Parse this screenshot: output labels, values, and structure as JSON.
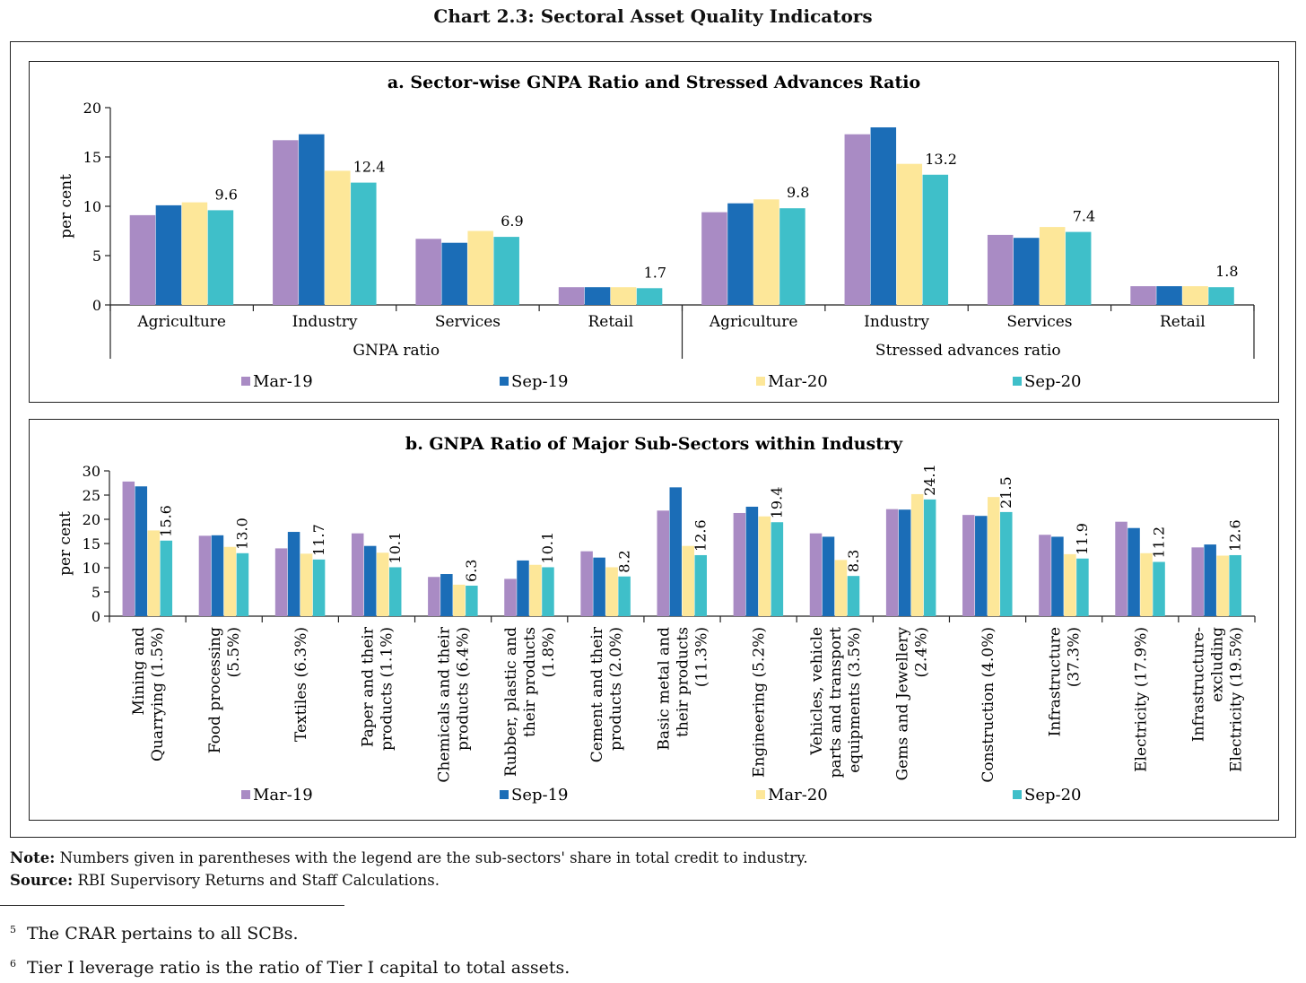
{
  "title": "Chart 2.3: Sectoral Asset Quality Indicators",
  "legend": [
    {
      "name": "Mar-19",
      "color": "#a98bc4"
    },
    {
      "name": "Sep-19",
      "color": "#1b6db7"
    },
    {
      "name": "Mar-20",
      "color": "#fde799"
    },
    {
      "name": "Sep-20",
      "color": "#3fbfc9"
    }
  ],
  "note_label": "Note:",
  "note_text": "Numbers given in parentheses with the legend are the sub-sectors' share in total credit to industry.",
  "source_label": "Source:",
  "source_text": "RBI Supervisory Returns and Staff Calculations.",
  "footnotes": [
    {
      "num": "5",
      "text": "The CRAR pertains to all SCBs."
    },
    {
      "num": "6",
      "text": "Tier I leverage ratio is the ratio of Tier I capital to total assets."
    }
  ],
  "chart_data": [
    {
      "type": "bar",
      "title": "a. Sector-wise GNPA Ratio and Stressed Advances Ratio",
      "ylabel": "per cent",
      "ylim": [
        0,
        20
      ],
      "yticks": [
        0,
        5,
        10,
        15,
        20
      ],
      "groups": [
        {
          "label": "GNPA ratio",
          "categories": [
            "Agriculture",
            "Industry",
            "Services",
            "Retail"
          ]
        },
        {
          "label": "Stressed advances ratio",
          "categories": [
            "Agriculture",
            "Industry",
            "Services",
            "Retail"
          ]
        }
      ],
      "categories": [
        "Agriculture",
        "Industry",
        "Services",
        "Retail",
        "Agriculture",
        "Industry",
        "Services",
        "Retail"
      ],
      "series": [
        {
          "name": "Mar-19",
          "values": [
            9.1,
            16.7,
            6.7,
            1.8,
            9.4,
            17.3,
            7.1,
            1.9
          ]
        },
        {
          "name": "Sep-19",
          "values": [
            10.1,
            17.3,
            6.3,
            1.8,
            10.3,
            18.0,
            6.8,
            1.9
          ]
        },
        {
          "name": "Mar-20",
          "values": [
            10.4,
            13.6,
            7.5,
            1.8,
            10.7,
            14.3,
            7.9,
            1.9
          ]
        },
        {
          "name": "Sep-20",
          "values": [
            9.6,
            12.4,
            6.9,
            1.7,
            9.8,
            13.2,
            7.4,
            1.8
          ]
        }
      ],
      "data_labels": [
        "9.6",
        "12.4",
        "6.9",
        "1.7",
        "9.8",
        "13.2",
        "7.4",
        "1.8"
      ],
      "legend_position": "bottom"
    },
    {
      "type": "bar",
      "title": "b. GNPA Ratio of Major Sub-Sectors within Industry",
      "ylabel": "per cent",
      "ylim": [
        0,
        30
      ],
      "yticks": [
        0,
        5,
        10,
        15,
        20,
        25,
        30
      ],
      "categories": [
        [
          "Mining and",
          "Quarrying (1.5%)"
        ],
        [
          "Food processing",
          "(5.5%)"
        ],
        [
          "Textiles (6.3%)"
        ],
        [
          "Paper and their",
          "products (1.1%)"
        ],
        [
          "Chemicals and their",
          "products (6.4%)"
        ],
        [
          "Rubber, plastic and",
          "their products",
          "(1.8%)"
        ],
        [
          "Cement  and their",
          "products (2.0%)"
        ],
        [
          "Basic metal and",
          "their products",
          "(11.3%)"
        ],
        [
          "Engineering (5.2%)"
        ],
        [
          "Vehicles, vehicle",
          "parts and transport",
          "equipments (3.5%)"
        ],
        [
          "Gems and Jewellery",
          "(2.4%)"
        ],
        [
          "Construction (4.0%)"
        ],
        [
          "Infrastructure",
          "(37.3%)"
        ],
        [
          "Electricity (17.9%)"
        ],
        [
          "Infrastructure-",
          "excluding",
          "Electricity (19.5%)"
        ]
      ],
      "series": [
        {
          "name": "Mar-19",
          "values": [
            27.8,
            16.6,
            14.0,
            17.1,
            8.1,
            7.7,
            13.4,
            21.8,
            21.3,
            17.1,
            22.1,
            20.9,
            16.8,
            19.5,
            14.2
          ]
        },
        {
          "name": "Sep-19",
          "values": [
            26.8,
            16.7,
            17.4,
            14.5,
            8.7,
            11.5,
            12.1,
            26.6,
            22.6,
            16.4,
            22.0,
            20.7,
            16.4,
            18.2,
            14.8
          ]
        },
        {
          "name": "Mar-20",
          "values": [
            17.7,
            14.3,
            12.9,
            13.1,
            6.5,
            10.6,
            10.1,
            14.5,
            20.6,
            11.6,
            25.2,
            24.6,
            12.8,
            13.0,
            12.5
          ]
        },
        {
          "name": "Sep-20",
          "values": [
            15.6,
            13.0,
            11.7,
            10.1,
            6.3,
            10.1,
            8.2,
            12.6,
            19.4,
            8.3,
            24.1,
            21.5,
            11.9,
            11.2,
            12.6
          ]
        }
      ],
      "data_labels": [
        "15.6",
        "13.0",
        "11.7",
        "10.1",
        "6.3",
        "10.1",
        "8.2",
        "12.6",
        "19.4",
        "8.3",
        "24.1",
        "21.5",
        "11.9",
        "11.2",
        "12.6"
      ],
      "legend_position": "bottom"
    }
  ]
}
